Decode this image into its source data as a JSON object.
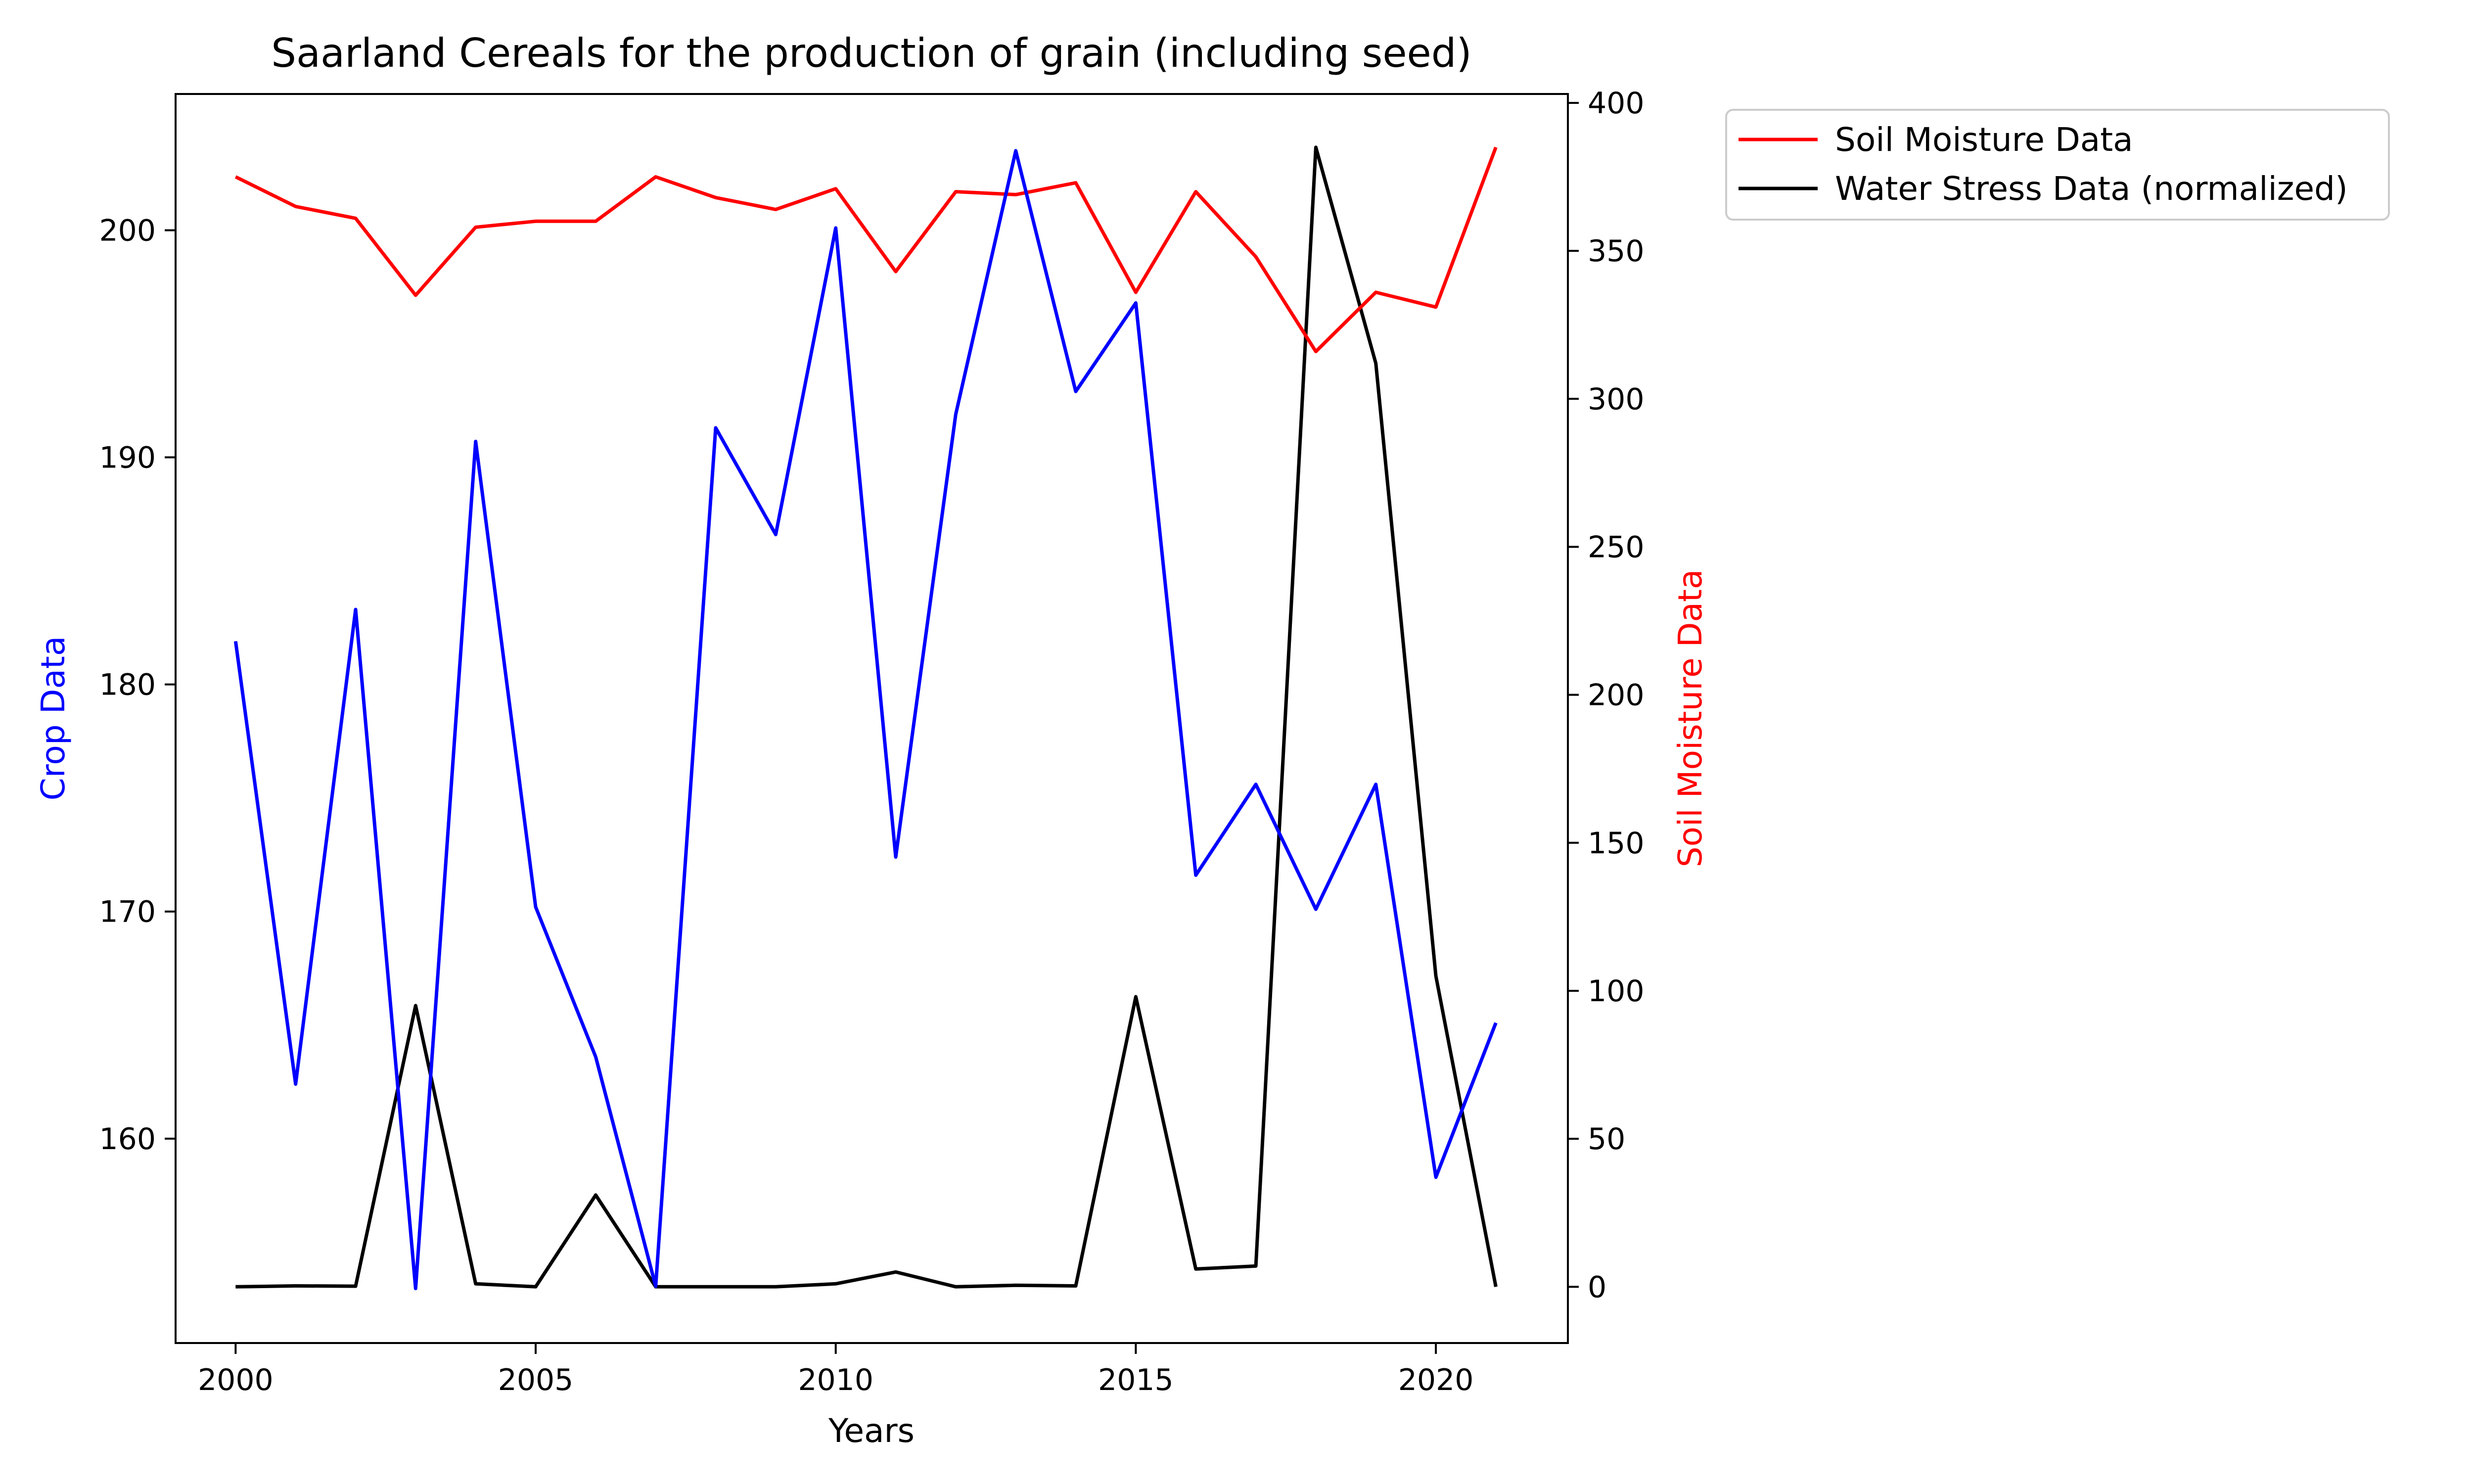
{
  "chart_data": {
    "type": "line",
    "title": "Saarland Cereals for the production of grain (including seed)",
    "xlabel": "Years",
    "ylabel": "Crop Data",
    "y2label": "Soil Moisture Data",
    "x": [
      2000,
      2001,
      2002,
      2003,
      2004,
      2005,
      2006,
      2007,
      2008,
      2009,
      2010,
      2011,
      2012,
      2013,
      2014,
      2015,
      2016,
      2017,
      2018,
      2019,
      2020,
      2021
    ],
    "xlim": [
      1999,
      2022.2
    ],
    "ylim": [
      151,
      206
    ],
    "y2lim": [
      -19,
      403
    ],
    "xticks": [
      2000,
      2005,
      2010,
      2015,
      2020
    ],
    "yticks": [
      160,
      170,
      180,
      190,
      200
    ],
    "y2ticks": [
      0,
      50,
      100,
      150,
      200,
      250,
      300,
      350,
      400
    ],
    "grid": false,
    "legend_position": "outside-top-right",
    "series": [
      {
        "name": "Crop Data",
        "axis": "left",
        "color": "#0000ff",
        "values": [
          181.9,
          162.4,
          183.3,
          153.4,
          190.7,
          170.2,
          163.6,
          153.5,
          191.3,
          186.6,
          200.1,
          172.4,
          191.9,
          203.5,
          192.9,
          196.8,
          171.6,
          175.6,
          170.1,
          175.6,
          158.3,
          165.1
        ]
      },
      {
        "name": "Soil Moisture Data",
        "axis": "right",
        "color": "#ff0000",
        "values": [
          375,
          365,
          361,
          335,
          358,
          360,
          360,
          375,
          368,
          364,
          371,
          343,
          370,
          369,
          373,
          336,
          370,
          348,
          316,
          336,
          331,
          385
        ]
      },
      {
        "name": "Water Stress Data (normalized)",
        "axis": "right",
        "color": "#000000",
        "values": [
          0,
          0.3,
          0.2,
          95,
          1,
          0,
          31,
          0,
          0,
          0,
          1,
          5,
          0,
          0.5,
          0.3,
          98,
          6,
          7,
          385,
          312,
          105,
          0
        ]
      }
    ]
  }
}
